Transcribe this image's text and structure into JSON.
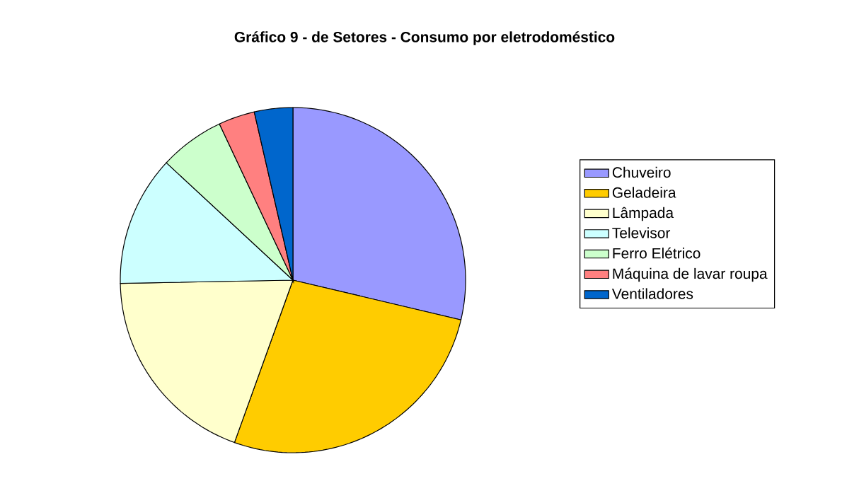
{
  "chart_data": {
    "type": "pie",
    "title": "Gráfico 9 - de Setores - Consumo por eletrodoméstico",
    "categories": [
      "Chuveiro",
      "Geladeira",
      "Lâmpada",
      "Televisor",
      "Ferro Elétrico",
      "Máquina de lavar roupa",
      "Ventiladores"
    ],
    "values": [
      28.7,
      26.8,
      19.2,
      12.2,
      6.1,
      3.4,
      3.6
    ],
    "colors": [
      "#9999ff",
      "#ffcc00",
      "#ffffcc",
      "#ccffff",
      "#ccffcc",
      "#ff8080",
      "#0066cc"
    ],
    "legend": "right"
  }
}
